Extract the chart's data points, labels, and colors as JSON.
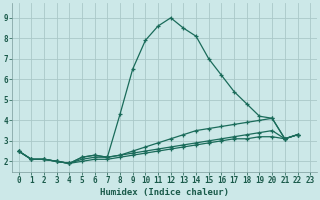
{
  "xlabel": "Humidex (Indice chaleur)",
  "background_color": "#cce8e8",
  "grid_color": "#aac8c8",
  "line_color": "#1a6b5a",
  "xlim": [
    -0.5,
    23.5
  ],
  "ylim": [
    1.5,
    9.7
  ],
  "yticks": [
    2,
    3,
    4,
    5,
    6,
    7,
    8,
    9
  ],
  "xticks": [
    0,
    1,
    2,
    3,
    4,
    5,
    6,
    7,
    8,
    9,
    10,
    11,
    12,
    13,
    14,
    15,
    16,
    17,
    18,
    19,
    20,
    21,
    22,
    23
  ],
  "series": [
    {
      "x": [
        0,
        1,
        2,
        3,
        4,
        5,
        6,
        7,
        8,
        9,
        10,
        11,
        12,
        13,
        14,
        15,
        16,
        17,
        18,
        19,
        20,
        21,
        22
      ],
      "y": [
        2.5,
        2.1,
        2.1,
        2.0,
        1.9,
        2.2,
        2.3,
        2.2,
        4.3,
        6.5,
        7.9,
        8.6,
        9.0,
        8.5,
        8.1,
        7.0,
        6.2,
        5.4,
        4.8,
        4.2,
        4.1,
        3.1,
        3.3
      ]
    },
    {
      "x": [
        0,
        1,
        2,
        3,
        4,
        5,
        6,
        7,
        8,
        9,
        10,
        11,
        12,
        13,
        14,
        15,
        16,
        17,
        18,
        19,
        20,
        21,
        22
      ],
      "y": [
        2.5,
        2.1,
        2.1,
        2.0,
        1.9,
        2.2,
        2.3,
        2.2,
        2.3,
        2.5,
        2.7,
        2.9,
        3.1,
        3.3,
        3.5,
        3.6,
        3.7,
        3.8,
        3.9,
        4.0,
        4.1,
        3.1,
        3.3
      ]
    },
    {
      "x": [
        0,
        1,
        2,
        3,
        4,
        5,
        6,
        7,
        8,
        9,
        10,
        11,
        12,
        13,
        14,
        15,
        16,
        17,
        18,
        19,
        20,
        21,
        22
      ],
      "y": [
        2.5,
        2.1,
        2.1,
        2.0,
        1.9,
        2.1,
        2.2,
        2.2,
        2.3,
        2.4,
        2.5,
        2.6,
        2.7,
        2.8,
        2.9,
        3.0,
        3.1,
        3.2,
        3.3,
        3.4,
        3.5,
        3.1,
        3.3
      ]
    },
    {
      "x": [
        0,
        1,
        2,
        3,
        4,
        5,
        6,
        7,
        8,
        9,
        10,
        11,
        12,
        13,
        14,
        15,
        16,
        17,
        18,
        19,
        20,
        21,
        22
      ],
      "y": [
        2.5,
        2.1,
        2.1,
        2.0,
        1.9,
        2.0,
        2.1,
        2.1,
        2.2,
        2.3,
        2.4,
        2.5,
        2.6,
        2.7,
        2.8,
        2.9,
        3.0,
        3.1,
        3.1,
        3.2,
        3.2,
        3.1,
        3.3
      ]
    }
  ]
}
